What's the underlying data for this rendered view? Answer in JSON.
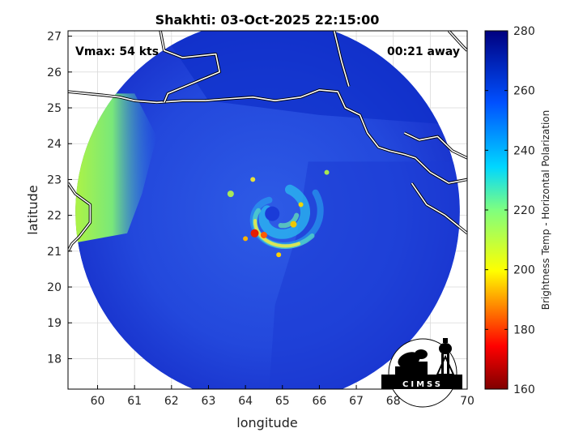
{
  "chart_data": {
    "type": "heatmap",
    "title": "Shakhti: 03-Oct-2025 22:15:00",
    "xlabel": "longitude",
    "ylabel": "latitude",
    "xlim": [
      59.2,
      70
    ],
    "ylim": [
      17.15,
      27.15
    ],
    "xticks": [
      60,
      61,
      62,
      63,
      64,
      65,
      66,
      67,
      68,
      69,
      70
    ],
    "yticks": [
      18,
      19,
      20,
      21,
      22,
      23,
      24,
      25,
      26,
      27
    ],
    "grid": true,
    "annotations": {
      "vmax": "Vmax: 54 kts",
      "time_away": "00:21 away"
    },
    "storm_center": {
      "lon": 64.9,
      "lat": 22.0
    },
    "footprint": {
      "center_lon": 64.6,
      "center_lat": 22.1,
      "radius_deg": 5.2
    },
    "colorbar": {
      "label": "Brightness Temp - Horizontal Polarization",
      "min": 160,
      "max": 280,
      "ticks": [
        160,
        180,
        200,
        220,
        240,
        260,
        280
      ]
    },
    "logo_text": "CIMSS"
  },
  "colors": {
    "background_field": "#1f3fd8",
    "coast": "#ffffff",
    "frame": "#000000",
    "grid": "#d9d9d9"
  }
}
